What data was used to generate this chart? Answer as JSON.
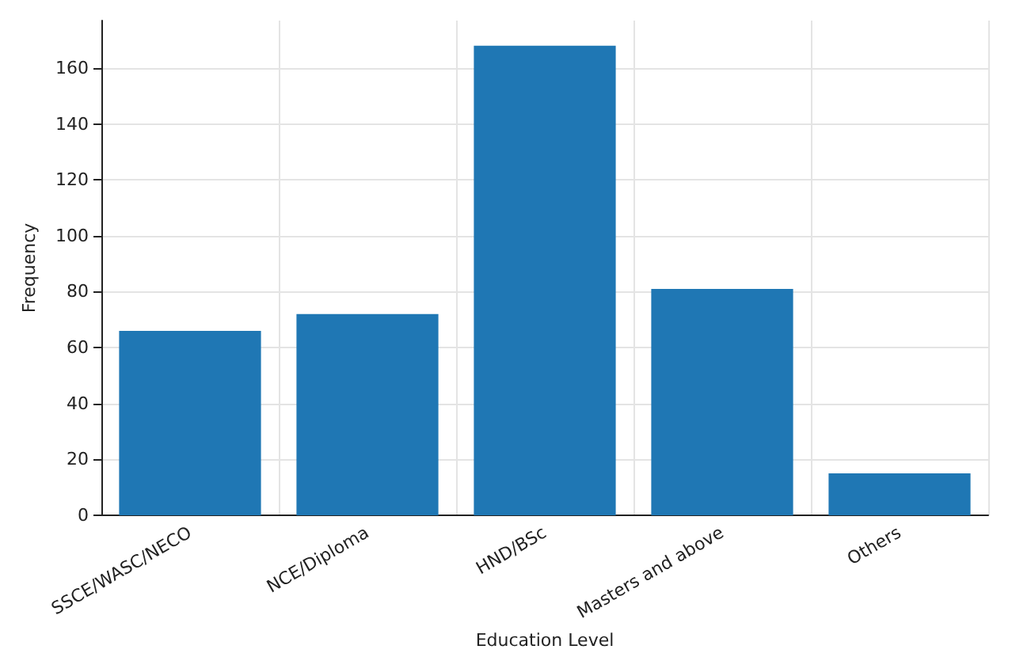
{
  "chart_data": {
    "type": "bar",
    "xlabel": "Education Level",
    "ylabel": "Frequency",
    "categories": [
      "SSCE/WASC/NECO",
      "NCE/Diploma",
      "HND/BSc",
      "Masters and above",
      "Others"
    ],
    "values": [
      66,
      72,
      168,
      81,
      15
    ],
    "color": "#1f77b4",
    "ylim": [
      0,
      177
    ],
    "yticks": [
      0,
      20,
      40,
      60,
      80,
      100,
      120,
      140,
      160
    ],
    "grid": true
  }
}
